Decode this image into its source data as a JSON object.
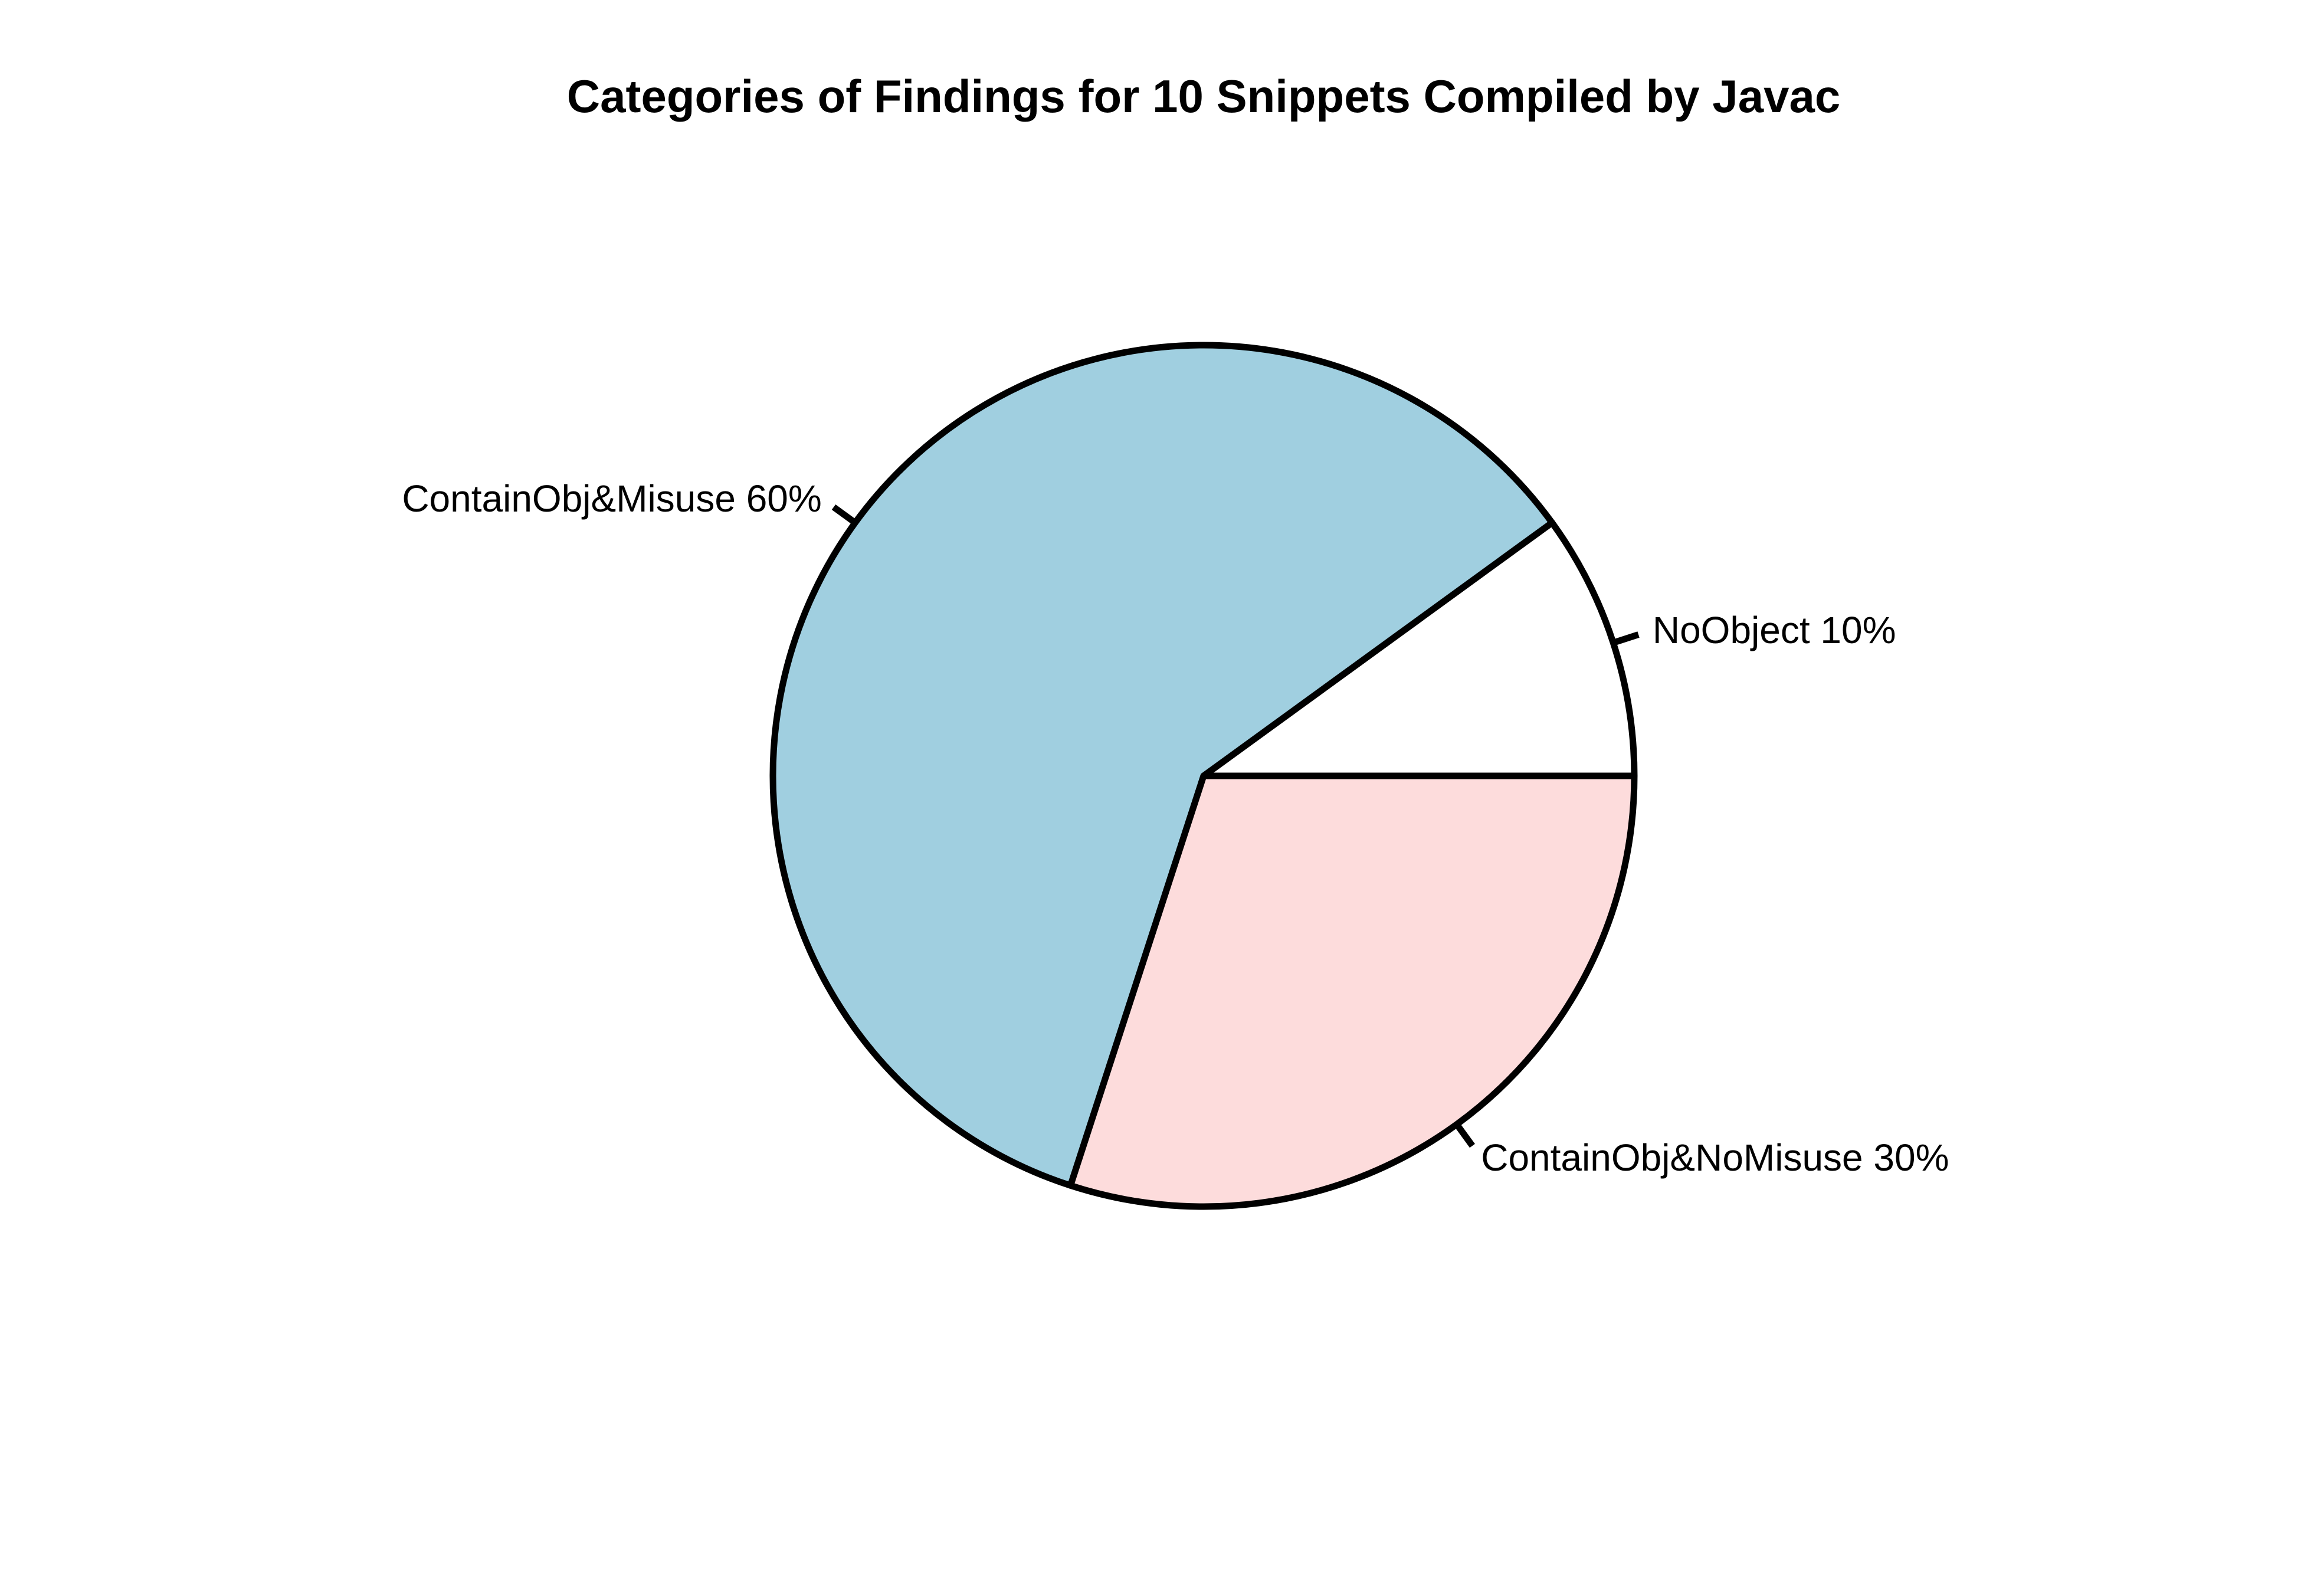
{
  "chart_data": {
    "type": "pie",
    "title": "Categories of Findings for 10 Snippets Compiled by Javac",
    "slices": [
      {
        "name": "NoObject",
        "value": 10,
        "label": "NoObject 10%",
        "color": "#ffffff"
      },
      {
        "name": "ContainObj&Misuse",
        "value": 60,
        "label": "ContainObj&Misuse 60%",
        "color": "#a0cfe0"
      },
      {
        "name": "ContainObj&NoMisuse",
        "value": 30,
        "label": "ContainObj&NoMisuse 30%",
        "color": "#fddcdc"
      }
    ],
    "start_angle_deg": 0,
    "direction": "counterclockwise",
    "outline_color": "#000000"
  }
}
